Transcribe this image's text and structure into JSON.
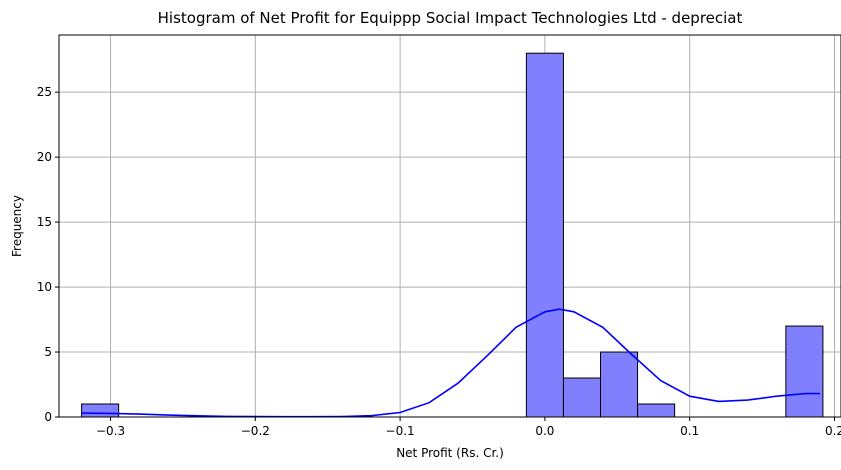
{
  "chart_data": {
    "type": "bar",
    "title": "Histogram of Net Profit for Equippp Social Impact Technologies Ltd - depreciat",
    "xlabel": "Net Profit (Rs. Cr.)",
    "ylabel": "Frequency",
    "xlim": [
      -0.3356,
      0.2045
    ],
    "ylim": [
      0,
      29.4
    ],
    "grid": true,
    "x_ticks": [
      {
        "value": -0.3,
        "label": "−0.3"
      },
      {
        "value": -0.2,
        "label": "−0.2"
      },
      {
        "value": -0.1,
        "label": "−0.1"
      },
      {
        "value": 0.0,
        "label": "0.0"
      },
      {
        "value": 0.1,
        "label": "0.1"
      },
      {
        "value": 0.2,
        "label": "0.2"
      }
    ],
    "y_ticks": [
      {
        "value": 0,
        "label": "0"
      },
      {
        "value": 5,
        "label": "5"
      },
      {
        "value": 10,
        "label": "10"
      },
      {
        "value": 15,
        "label": "15"
      },
      {
        "value": 20,
        "label": "20"
      },
      {
        "value": 25,
        "label": "25"
      }
    ],
    "bins": [
      {
        "x0": -0.32,
        "x1": -0.2944,
        "count": 1
      },
      {
        "x0": -0.0128,
        "x1": 0.0128,
        "count": 28
      },
      {
        "x0": 0.0128,
        "x1": 0.0384,
        "count": 3
      },
      {
        "x0": 0.0384,
        "x1": 0.064,
        "count": 5
      },
      {
        "x0": 0.064,
        "x1": 0.0896,
        "count": 1
      },
      {
        "x0": 0.1664,
        "x1": 0.192,
        "count": 7
      }
    ],
    "kde": {
      "x": [
        -0.32,
        -0.3,
        -0.28,
        -0.26,
        -0.24,
        -0.22,
        -0.2,
        -0.18,
        -0.16,
        -0.14,
        -0.12,
        -0.1,
        -0.08,
        -0.06,
        -0.04,
        -0.02,
        0.0,
        0.01,
        0.02,
        0.04,
        0.06,
        0.08,
        0.1,
        0.12,
        0.14,
        0.16,
        0.18,
        0.19
      ],
      "y": [
        0.3,
        0.28,
        0.22,
        0.15,
        0.09,
        0.05,
        0.03,
        0.02,
        0.02,
        0.04,
        0.1,
        0.35,
        1.1,
        2.6,
        4.7,
        6.9,
        8.1,
        8.3,
        8.1,
        6.9,
        4.8,
        2.8,
        1.6,
        1.2,
        1.3,
        1.6,
        1.8,
        1.8
      ]
    },
    "colors": {
      "bar_fill": "#8080ff",
      "bar_edge": "#000000",
      "kde_line": "#0000ff",
      "grid": "#b0b0b0"
    }
  }
}
